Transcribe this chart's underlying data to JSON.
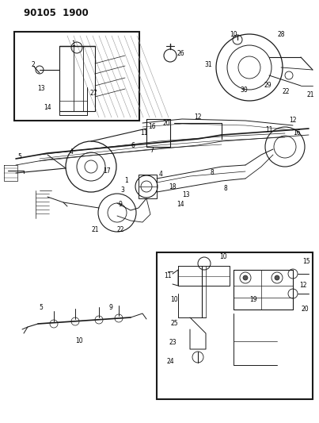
{
  "title": "90105 1900",
  "bg_color": "#ffffff",
  "line_color": "#1a1a1a",
  "title_fontsize": 9,
  "fig_width": 4.03,
  "fig_height": 5.33,
  "dpi": 100
}
